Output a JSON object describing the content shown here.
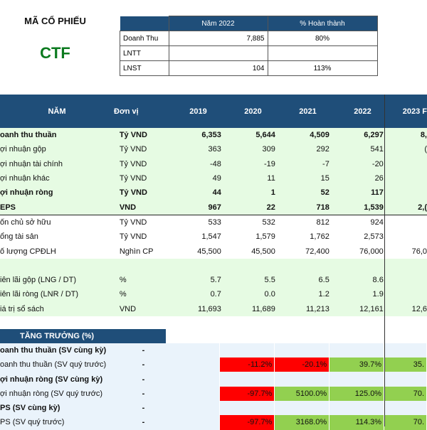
{
  "header": {
    "title": "MÃ CỔ PHIẾU",
    "ticker": "CTF"
  },
  "kpi": {
    "columns": [
      "",
      "Năm 2022",
      "% Hoàn thành"
    ],
    "rows": [
      {
        "label": "Doanh Thu",
        "value": "7,885",
        "pct": "80%"
      },
      {
        "label": "LNTT",
        "value": "",
        "pct": ""
      },
      {
        "label": "LNST",
        "value": "104",
        "pct": "113%"
      }
    ]
  },
  "main": {
    "headers": [
      "NĂM",
      "Đơn vị",
      "2019",
      "2020",
      "2021",
      "2022",
      "2023 F"
    ],
    "rows": [
      {
        "name": "oanh thu thuần",
        "unit": "Tỷ VND",
        "v": [
          "6,353",
          "5,644",
          "4,509",
          "6,297",
          "8,"
        ],
        "bold": true,
        "green": true
      },
      {
        "name": "ợi nhuận gộp",
        "unit": "Tỷ VND",
        "v": [
          "363",
          "309",
          "292",
          "541",
          "("
        ],
        "bold": false,
        "green": true
      },
      {
        "name": "ợi nhuận tài chính",
        "unit": "Tỷ VND",
        "v": [
          "-48",
          "-19",
          "-7",
          "-20",
          ""
        ],
        "bold": false,
        "green": true
      },
      {
        "name": "ợi nhuận khác",
        "unit": "Tỷ VND",
        "v": [
          "49",
          "11",
          "15",
          "26",
          ""
        ],
        "bold": false,
        "green": true
      },
      {
        "name": "ợi nhuận ròng",
        "unit": "Tỷ VND",
        "v": [
          "44",
          "1",
          "52",
          "117",
          ""
        ],
        "bold": true,
        "green": true
      },
      {
        "name": "EPS",
        "unit": "VND",
        "v": [
          "967",
          "22",
          "718",
          "1,539",
          "2,("
        ],
        "bold": true,
        "green": true
      },
      {
        "name": "ốn chủ sở hữu",
        "unit": "Tỷ VND",
        "v": [
          "533",
          "532",
          "812",
          "924",
          ""
        ],
        "bold": false,
        "green": false
      },
      {
        "name": "ổng tài sản",
        "unit": "Tỷ VND",
        "v": [
          "1,547",
          "1,579",
          "1,762",
          "2,573",
          ""
        ],
        "bold": false,
        "green": false
      },
      {
        "name": "ố lượng CPĐLH",
        "unit": "Nghìn CP",
        "v": [
          "45,500",
          "45,500",
          "72,400",
          "76,000",
          "76,0"
        ],
        "bold": false,
        "green": false
      },
      {
        "name": "",
        "unit": "",
        "v": [
          "",
          "",
          "",
          "",
          ""
        ],
        "bold": false,
        "green": true
      },
      {
        "name": "iên lãi gộp (LNG / DT)",
        "unit": "%",
        "v": [
          "5.7",
          "5.5",
          "6.5",
          "8.6",
          ""
        ],
        "bold": false,
        "green": true
      },
      {
        "name": "iên lãi ròng (LNR / DT)",
        "unit": "%",
        "v": [
          "0.7",
          "0.0",
          "1.2",
          "1.9",
          ""
        ],
        "bold": false,
        "green": true
      },
      {
        "name": "iá trị sổ sách",
        "unit": "VND",
        "v": [
          "11,693",
          "11,689",
          "11,213",
          "12,161",
          "12,6"
        ],
        "bold": false,
        "green": true
      }
    ]
  },
  "growth": {
    "title": "TĂNG TRƯỞNG (%)",
    "rows": [
      {
        "name": "oanh thu thuần (SV cùng kỳ)",
        "bold": true,
        "dash": "-",
        "v": [
          "",
          "",
          "",
          "",
          ""
        ],
        "colors": [
          "",
          "",
          "",
          "",
          ""
        ]
      },
      {
        "name": "oanh thu thuần (SV quý trước)",
        "bold": false,
        "dash": "-",
        "v": [
          "",
          "-11.2%",
          "-20.1%",
          "39.7%",
          "35."
        ],
        "colors": [
          "",
          "red",
          "red",
          "lg",
          "lg"
        ]
      },
      {
        "name": "ợi nhuận ròng (SV cùng kỳ)",
        "bold": true,
        "dash": "-",
        "v": [
          "",
          "",
          "",
          "",
          ""
        ],
        "colors": [
          "",
          "",
          "",
          "",
          ""
        ]
      },
      {
        "name": "ợi nhuận ròng (SV quý trước)",
        "bold": false,
        "dash": "-",
        "v": [
          "",
          "-97.7%",
          "5100.0%",
          "125.0%",
          "70."
        ],
        "colors": [
          "",
          "red",
          "lg",
          "lg",
          "lg"
        ]
      },
      {
        "name": "PS (SV cùng kỳ)",
        "bold": true,
        "dash": "-",
        "v": [
          "",
          "",
          "",
          "",
          ""
        ],
        "colors": [
          "",
          "",
          "",
          "",
          ""
        ]
      },
      {
        "name": "PS (SV quý trước)",
        "bold": false,
        "dash": "-",
        "v": [
          "",
          "-97.7%",
          "3168.0%",
          "114.3%",
          "70."
        ],
        "colors": [
          "",
          "red",
          "lg",
          "lg",
          "lg"
        ]
      }
    ]
  },
  "colors": {
    "header_bg": "#1f4e79",
    "ticker": "#0b7a1f",
    "negative": "#ff0000",
    "positive": "#92d050"
  }
}
